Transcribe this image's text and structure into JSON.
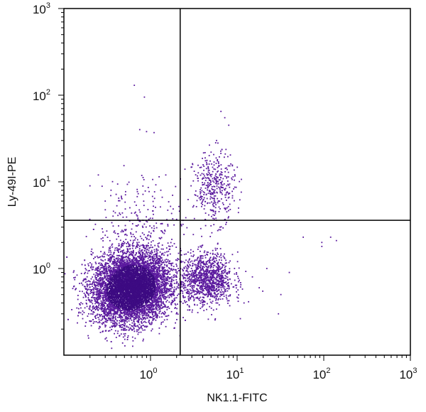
{
  "chart_data": {
    "type": "scatter",
    "title": "",
    "xlabel": "NK1.1-FITC",
    "ylabel": "Ly-49I-PE",
    "x_scale": "log",
    "y_scale": "log",
    "xlim": [
      0.1,
      1000
    ],
    "ylim": [
      0.1,
      1000
    ],
    "x_ticks": [
      {
        "value": 1,
        "base": "10",
        "exp": "0"
      },
      {
        "value": 10,
        "base": "10",
        "exp": "1"
      },
      {
        "value": 100,
        "base": "10",
        "exp": "2"
      },
      {
        "value": 1000,
        "base": "10",
        "exp": "3"
      }
    ],
    "y_ticks": [
      {
        "value": 1,
        "base": "10",
        "exp": "0"
      },
      {
        "value": 10,
        "base": "10",
        "exp": "1"
      },
      {
        "value": 100,
        "base": "10",
        "exp": "2"
      },
      {
        "value": 1000,
        "base": "10",
        "exp": "3"
      }
    ],
    "quadrant_gates": {
      "x": 2.2,
      "y": 3.6
    },
    "point_color": "#5b1a9e",
    "dense_color": "#3d0a82",
    "grid": false,
    "legend": "none",
    "populations": [
      {
        "name_hidden": true,
        "center": [
          0.6,
          0.6
        ],
        "spread": [
          0.22,
          0.2
        ],
        "count": 7500
      },
      {
        "name_hidden": true,
        "center": [
          4.5,
          0.75
        ],
        "spread": [
          0.15,
          0.15
        ],
        "count": 1100
      },
      {
        "name_hidden": true,
        "center": [
          5.5,
          8.5
        ],
        "spread": [
          0.12,
          0.2
        ],
        "count": 380
      },
      {
        "name_hidden": true,
        "center": [
          0.8,
          3.0
        ],
        "spread": [
          0.25,
          0.3
        ],
        "count": 260
      }
    ],
    "outliers": [
      [
        0.65,
        130
      ],
      [
        0.85,
        95
      ],
      [
        0.75,
        40
      ],
      [
        0.9,
        38
      ],
      [
        1.1,
        37
      ],
      [
        6.5,
        65
      ],
      [
        7.2,
        55
      ],
      [
        8,
        45
      ],
      [
        6,
        28
      ],
      [
        5,
        22
      ],
      [
        58,
        2.3
      ],
      [
        95,
        2.0
      ],
      [
        120,
        2.3
      ],
      [
        140,
        2.1
      ],
      [
        95,
        1.8
      ],
      [
        30,
        0.3
      ],
      [
        32,
        0.5
      ],
      [
        40,
        0.9
      ],
      [
        18,
        0.6
      ],
      [
        22,
        1.0
      ],
      [
        0.2,
        9
      ],
      [
        0.25,
        12
      ],
      [
        0.35,
        8
      ],
      [
        0.3,
        6
      ],
      [
        1.5,
        12
      ],
      [
        2.5,
        14
      ],
      [
        3.5,
        11
      ],
      [
        1.8,
        7
      ],
      [
        12,
        0.4
      ],
      [
        15,
        0.8
      ]
    ]
  }
}
